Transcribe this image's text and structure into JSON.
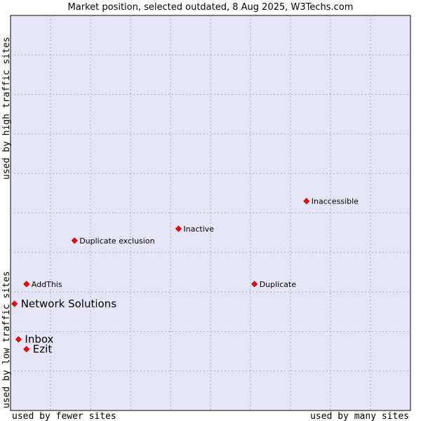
{
  "chart_data": {
    "type": "scatter",
    "title": "Market position, selected outdated, 8 Aug 2025, W3Techs.com",
    "x_axis": {
      "left_label": "used by fewer sites",
      "right_label": "used by many sites",
      "range": [
        0,
        10
      ]
    },
    "y_axis": {
      "bottom_label": "used by low traffic sites",
      "top_label": "used by high traffic sites",
      "range": [
        0,
        10
      ]
    },
    "grid": true,
    "colors": {
      "plot_bg": "#e6e6f8",
      "grid": "#a6a6c0",
      "marker": "#ff0000",
      "marker_stroke": "#b40000"
    },
    "points": [
      {
        "label": "Inaccessible",
        "x": 7.4,
        "y": 5.3,
        "size": "small"
      },
      {
        "label": "Inactive",
        "x": 4.2,
        "y": 4.6,
        "size": "small"
      },
      {
        "label": "Duplicate exclusion",
        "x": 1.6,
        "y": 4.3,
        "size": "small"
      },
      {
        "label": "AddThis",
        "x": 0.4,
        "y": 3.2,
        "size": "small"
      },
      {
        "label": "Duplicate",
        "x": 6.1,
        "y": 3.2,
        "size": "small"
      },
      {
        "label": "Network Solutions",
        "x": 0.1,
        "y": 2.7,
        "size": "big"
      },
      {
        "label": "Inbox",
        "x": 0.2,
        "y": 1.8,
        "size": "big"
      },
      {
        "label": "Ezit",
        "x": 0.4,
        "y": 1.55,
        "size": "big"
      }
    ]
  }
}
